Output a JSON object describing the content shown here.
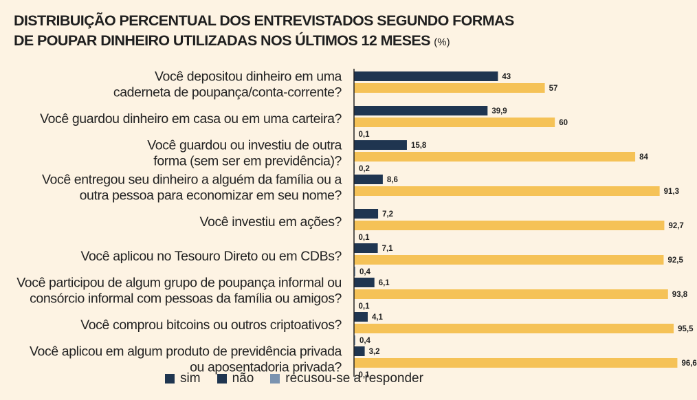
{
  "title": {
    "line1": "DISTRIBUIÇÃO PERCENTUAL DOS ENTREVISTADOS SEGUNDO FORMAS",
    "line2": "DE POUPAR DINHEIRO UTILIZADAS NOS ÚLTIMOS 12 MESES",
    "unit": "(%)"
  },
  "colors": {
    "sim": "#1f3550",
    "nao": "#f5c257",
    "recusou": "#7a93b0",
    "background": "#fdf3e3",
    "axis": "#222222"
  },
  "legend": [
    {
      "name": "sim",
      "color": "#1f3550"
    },
    {
      "name": "não",
      "color": "#1f3550"
    },
    {
      "name": "recusou-se a responder",
      "color": "#7a93b0"
    }
  ],
  "chart_data": {
    "type": "bar",
    "orientation": "horizontal",
    "legend_position": "bottom",
    "grid": false,
    "xlim": [
      0,
      100
    ],
    "categories": [
      [
        "Você depositou dinheiro em uma",
        "caderneta de poupança/conta-corrente?"
      ],
      [
        "Você guardou dinheiro em casa ou em uma carteira?"
      ],
      [
        "Você guardou ou investiu de outra",
        "forma (sem ser em previdência)?"
      ],
      [
        "Você entregou seu dinheiro a alguém da família ou a",
        "outra pessoa para economizar em seu nome?"
      ],
      [
        "Você investiu em ações?"
      ],
      [
        "Você aplicou no Tesouro Direto ou em CDBs?"
      ],
      [
        "Você participou de algum grupo de poupança informal ou",
        "consórcio informal com pessoas da família ou amigos?"
      ],
      [
        "Você comprou bitcoins ou outros criptoativos?"
      ],
      [
        "Você aplicou em algum produto de previdência privada",
        "ou aposentadoria privada?"
      ]
    ],
    "series": [
      {
        "name": "sim",
        "values": [
          43,
          39.9,
          15.8,
          8.6,
          7.2,
          7.1,
          6.1,
          4.1,
          3.2
        ],
        "labels": [
          "43",
          "39,9",
          "15,8",
          "8,6",
          "7,2",
          "7,1",
          "6,1",
          "4,1",
          "3,2"
        ]
      },
      {
        "name": "não",
        "values": [
          57,
          60,
          84,
          91.3,
          92.7,
          92.5,
          93.8,
          95.5,
          96.6
        ],
        "labels": [
          "57",
          "60",
          "84",
          "91,3",
          "92,7",
          "92,5",
          "93,8",
          "95,5",
          "96,6"
        ]
      },
      {
        "name": "recusou-se a responder",
        "values": [
          null,
          0.1,
          0.2,
          null,
          0.1,
          0.4,
          0.1,
          0.4,
          0.1
        ],
        "labels": [
          "",
          "0,1",
          "0,2",
          "",
          "0,1",
          "0,4",
          "0,1",
          "0,4",
          "0,1"
        ]
      }
    ]
  }
}
